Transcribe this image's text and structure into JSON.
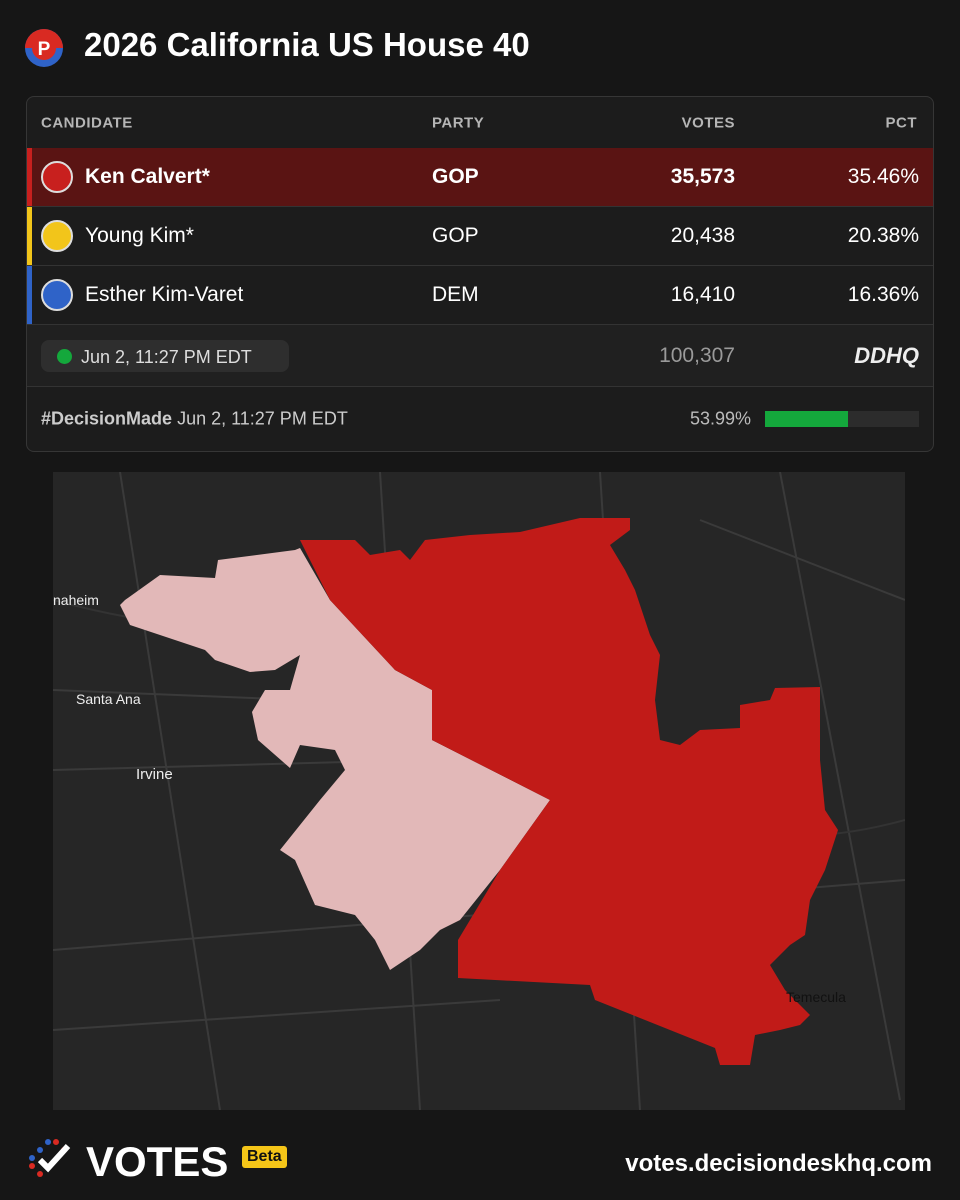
{
  "header": {
    "badge": "P",
    "title": "2026 California US House 40"
  },
  "table": {
    "columns": [
      "CANDIDATE",
      "PARTY",
      "VOTES",
      "PCT"
    ],
    "rows": [
      {
        "name": "Ken Calvert*",
        "party": "GOP",
        "votes": "35,573",
        "pct": "35.46%",
        "color": "#c8201e"
      },
      {
        "name": "Young Kim*",
        "party": "GOP",
        "votes": "20,438",
        "pct": "20.38%",
        "color": "#f2c51a"
      },
      {
        "name": "Esther Kim-Varet",
        "party": "DEM",
        "votes": "16,410",
        "pct": "16.36%",
        "color": "#2f63c8"
      }
    ],
    "updated": "Jun 2, 11:27 PM EDT",
    "total": "100,307",
    "source": "DDHQ"
  },
  "decision": {
    "label": "#DecisionMade",
    "time": "Jun 2, 11:27 PM EDT",
    "reporting": {
      "value": 53.99,
      "label": "53.99%"
    },
    "bar_color": "#14a83c"
  },
  "map": {
    "places": [
      "naheim",
      "Santa Ana",
      "Irvine",
      "Temecula"
    ]
  },
  "footer": {
    "brand": "VOTES",
    "tag": "Beta",
    "url": "votes.decisiondeskhq.com"
  }
}
